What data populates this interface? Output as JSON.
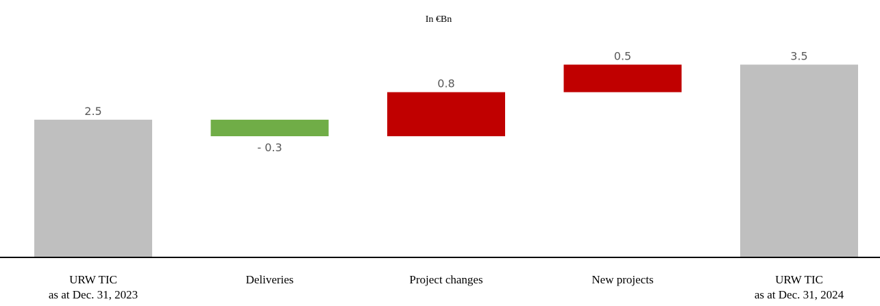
{
  "chart_data": {
    "type": "waterfall",
    "title": "In €Bn",
    "categories": [
      "URW TIC\nas at Dec. 31, 2023",
      "Deliveries",
      "Project changes",
      "New projects",
      "URW TIC\nas at Dec. 31, 2024"
    ],
    "values": [
      2.5,
      -0.3,
      0.8,
      0.5,
      3.5
    ],
    "value_labels": [
      "2.5",
      "- 0.3",
      "0.8",
      "0.5",
      "3.5"
    ],
    "total_color": "#bfbfbf",
    "increase_color": "#c00000",
    "decrease_color": "#70ad47",
    "ylim": [
      0,
      4.4
    ]
  }
}
